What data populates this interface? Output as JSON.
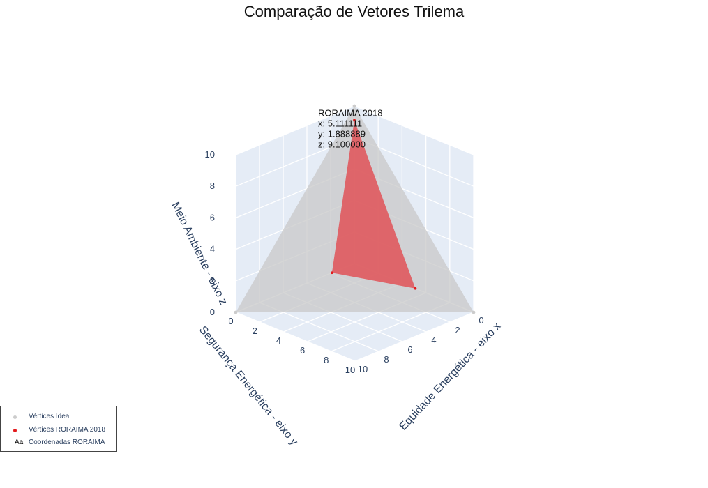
{
  "title": "Comparação de Vetores Trilema",
  "chart_data": {
    "type": "scatter3d",
    "title": "Comparação de Vetores Trilema",
    "xlabel": "Equidade Energética - eixo x",
    "ylabel": "Segurança Energética - eixo y",
    "zlabel": "Meio Ambiente - eixo z",
    "axis_range": [
      0,
      10
    ],
    "ticks": [
      "0",
      "2",
      "4",
      "6",
      "8",
      "10"
    ],
    "grid": true,
    "legend_position": "bottom-left",
    "series": [
      {
        "name": "Vértices Ideal",
        "color": "#cccccc",
        "mesh_color": "#c8c8c8",
        "points": [
          {
            "x": 10,
            "y": 0,
            "z": 0
          },
          {
            "x": 0,
            "y": 10,
            "z": 0
          },
          {
            "x": 0,
            "y": 0,
            "z": 10
          }
        ]
      },
      {
        "name": "Vértices RORAIMA 2018",
        "color": "#e31a1c",
        "mesh_color": "#e05257",
        "points": [
          {
            "x": 5.111111,
            "y": 0,
            "z": 0
          },
          {
            "x": 0,
            "y": 1.888889,
            "z": 0
          },
          {
            "x": 0,
            "y": 0,
            "z": 9.1
          }
        ]
      },
      {
        "name": "Coordenadas RORAIMA",
        "legend_symbol": "Aa",
        "text_lines": [
          "RORAIMA 2018",
          "x: 5.111111",
          "y: 1.888889",
          "z: 9.100000"
        ]
      }
    ]
  }
}
